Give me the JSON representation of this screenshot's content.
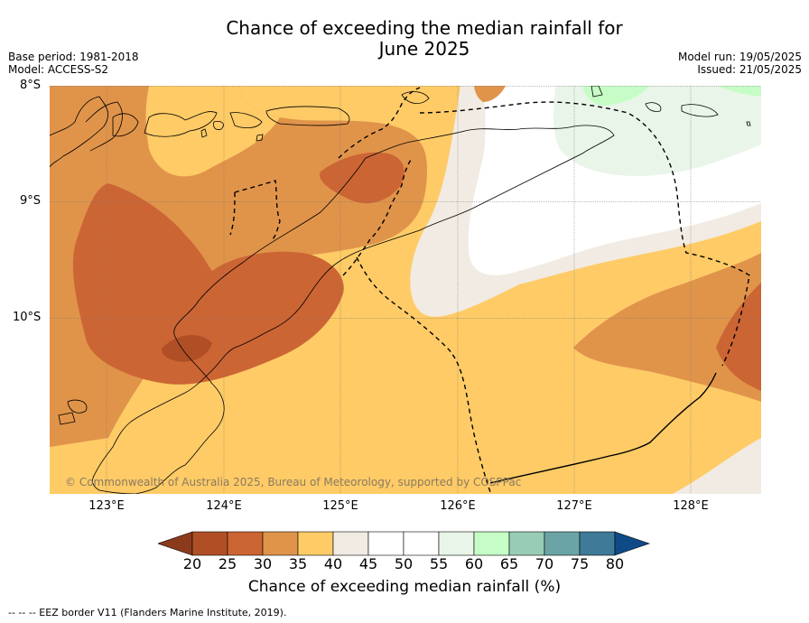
{
  "title_line1": "Chance of exceeding the median rainfall for",
  "title_line2": "June 2025",
  "base_period": "Base period: 1981-2018",
  "model": "Model: ACCESS-S2",
  "model_run": "Model run: 19/05/2025",
  "issued": "Issued: 21/05/2025",
  "lat_labels": [
    "8°S",
    "9°S",
    "10°S"
  ],
  "lon_labels": [
    "123°E",
    "124°E",
    "125°E",
    "126°E",
    "127°E",
    "128°E"
  ],
  "copyright": "© Commonwealth of Australia 2025, Bureau of Meteorology, supported by COSPPac",
  "colorbar": {
    "ticks": [
      "20",
      "25",
      "30",
      "35",
      "40",
      "45",
      "50",
      "55",
      "60",
      "65",
      "70",
      "75",
      "80"
    ],
    "colors": [
      "#8c3a1c",
      "#b04f26",
      "#cc6534",
      "#e0944a",
      "#fecb66",
      "#f1ebe3",
      "#ffffff",
      "#ffffff",
      "#e9f5e9",
      "#c6fdc6",
      "#98ccb6",
      "#6aa4a6",
      "#3f7a99",
      "#0f4a86"
    ],
    "label": "Chance of exceeding median rainfall (%)"
  },
  "eez_note": "-- -- -- EEZ border V11 (Flanders Marine Institute, 2019)."
}
